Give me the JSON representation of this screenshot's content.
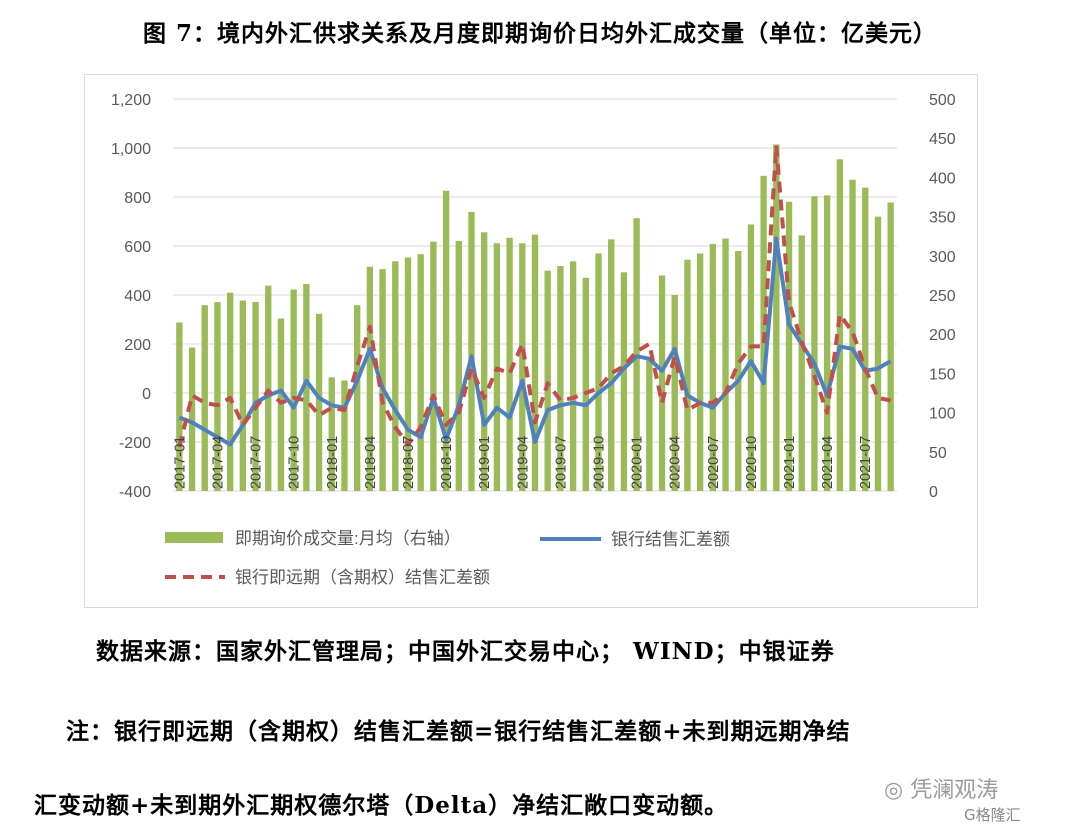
{
  "page": {
    "title": "图 7：境内外汇供求关系及月度即期询价日均外汇成交量（单位：亿美元）",
    "source": "数据来源：国家外汇管理局；中国外汇交易中心；  WIND；中银证券",
    "note_line1": "注：银行即远期（含期权）结售汇差额=银行结售汇差额+未到期远期净结",
    "note_line2": "汇变动额+未到期外汇期权德尔塔（Delta）净结汇敞口变动额。",
    "watermark": "凭澜观涛",
    "watermark2": "格隆汇"
  },
  "chart_data": {
    "type": "bar",
    "x_tick_labels": [
      "2017-01",
      "2017-04",
      "2017-07",
      "2017-10",
      "2018-01",
      "2018-04",
      "2018-07",
      "2018-10",
      "2019-01",
      "2019-04",
      "2019-07",
      "2019-10",
      "2020-01",
      "2020-04",
      "2020-07",
      "2020-10",
      "2021-01",
      "2021-04",
      "2021-07"
    ],
    "y_left_ticks": [
      "1,200",
      "1,000",
      "800",
      "600",
      "400",
      "200",
      "0",
      "-200",
      "-400"
    ],
    "y_right_ticks": [
      "500",
      "450",
      "400",
      "350",
      "300",
      "250",
      "200",
      "150",
      "100",
      "50",
      "0"
    ],
    "ylim_left": [
      -400,
      1200
    ],
    "ylim_right": [
      0,
      500
    ],
    "colors": {
      "bars": "#9bbb59",
      "line": "#4f81bd",
      "dashed": "#c0504d",
      "grid": "#d9d9d9"
    },
    "legend": [
      {
        "label": "即期询价成交量:月均（右轴）",
        "style": "bar"
      },
      {
        "label": "银行结售汇差额",
        "style": "line"
      },
      {
        "label": "银行即远期（含期权）结售汇差额",
        "style": "dashed"
      }
    ],
    "series": [
      {
        "name": "即期询价成交量:月均（右轴）",
        "axis": "right",
        "kind": "bar",
        "values": [
          215,
          183,
          237,
          241,
          253,
          243,
          241,
          262,
          220,
          257,
          264,
          226,
          145,
          141,
          237,
          286,
          283,
          293,
          298,
          302,
          318,
          383,
          319,
          356,
          330,
          316,
          323,
          316,
          327,
          281,
          287,
          293,
          272,
          303,
          321,
          279,
          348,
          171,
          275,
          250,
          295,
          303,
          315,
          322,
          306,
          340,
          402,
          442,
          369,
          326,
          376,
          377,
          423,
          397,
          387,
          350,
          368
        ]
      },
      {
        "name": "银行结售汇差额",
        "axis": "left",
        "kind": "line",
        "values": [
          -100,
          -120,
          -150,
          -180,
          -210,
          -130,
          -40,
          -10,
          10,
          -60,
          50,
          -20,
          -50,
          -60,
          50,
          180,
          20,
          -70,
          -150,
          -180,
          -20,
          -190,
          -50,
          150,
          -130,
          -60,
          -100,
          50,
          -200,
          -70,
          -50,
          -40,
          -50,
          0,
          40,
          100,
          150,
          140,
          90,
          180,
          -10,
          -40,
          -60,
          0,
          50,
          130,
          40,
          630,
          280,
          200,
          120,
          -10,
          190,
          180,
          90,
          100,
          130
        ]
      },
      {
        "name": "银行即远期（含期权）结售汇差额",
        "axis": "left",
        "kind": "line",
        "values": [
          -220,
          -10,
          -40,
          -50,
          -20,
          -130,
          -60,
          10,
          -40,
          -20,
          -30,
          -90,
          -60,
          -70,
          110,
          270,
          -40,
          -140,
          -210,
          -140,
          -10,
          -130,
          -80,
          100,
          -20,
          100,
          80,
          200,
          -120,
          40,
          -30,
          -20,
          0,
          20,
          80,
          110,
          170,
          200,
          -40,
          150,
          -70,
          -40,
          -40,
          0,
          120,
          190,
          190,
          1010,
          370,
          210,
          70,
          -80,
          320,
          250,
          100,
          -20,
          -30
        ]
      }
    ]
  }
}
